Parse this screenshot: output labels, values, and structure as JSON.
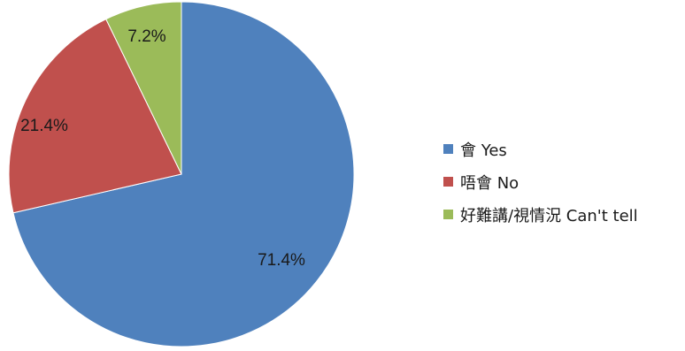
{
  "chart_data": {
    "type": "pie",
    "title": "",
    "start_angle_deg": 0,
    "direction": "clockwise",
    "legend_position": "right",
    "slices": [
      {
        "label": "會 Yes",
        "value": 71.4,
        "display": "71.4%",
        "color": "#4F81BD"
      },
      {
        "label": "唔會 No",
        "value": 21.4,
        "display": "21.4%",
        "color": "#C0504D"
      },
      {
        "label": "好難講/視情況 Can't tell",
        "value": 7.2,
        "display": "7.2%",
        "color": "#9BBB59"
      }
    ]
  }
}
